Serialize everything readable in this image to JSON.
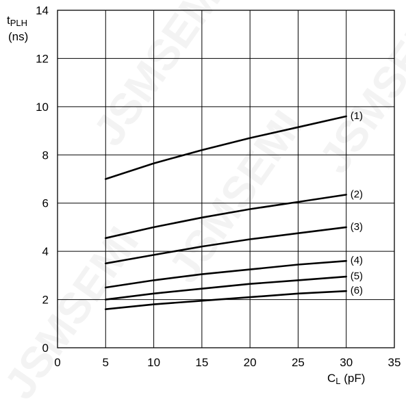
{
  "chart_data": {
    "type": "line",
    "title": "",
    "ylabel": {
      "main": "t",
      "sub": "PLH",
      "unit": "(ns)"
    },
    "xlabel": {
      "main": "C",
      "sub": "L",
      "unit": "(pF)"
    },
    "xlim": [
      0,
      35
    ],
    "ylim": [
      0,
      14
    ],
    "xticks": [
      0,
      5,
      10,
      15,
      20,
      25,
      30,
      35
    ],
    "yticks": [
      0,
      2,
      4,
      6,
      8,
      10,
      12,
      14
    ],
    "grid": true,
    "x": [
      5,
      10,
      15,
      20,
      25,
      30
    ],
    "series": [
      {
        "name": "(1)",
        "values": [
          7.0,
          7.65,
          8.2,
          8.7,
          9.15,
          9.6
        ]
      },
      {
        "name": "(2)",
        "values": [
          4.55,
          5.0,
          5.4,
          5.75,
          6.05,
          6.35
        ]
      },
      {
        "name": "(3)",
        "values": [
          3.5,
          3.85,
          4.2,
          4.5,
          4.75,
          5.0
        ]
      },
      {
        "name": "(4)",
        "values": [
          2.5,
          2.8,
          3.05,
          3.25,
          3.45,
          3.6
        ]
      },
      {
        "name": "(5)",
        "values": [
          2.0,
          2.25,
          2.45,
          2.65,
          2.8,
          2.95
        ]
      },
      {
        "name": "(6)",
        "values": [
          1.6,
          1.8,
          1.95,
          2.1,
          2.25,
          2.35
        ]
      }
    ]
  },
  "watermark": {
    "text": "JSMSEMI"
  }
}
